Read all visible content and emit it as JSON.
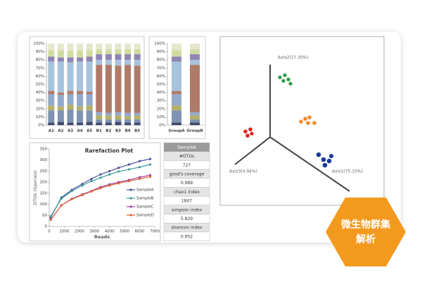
{
  "chart_data": [
    {
      "type": "stacked-bar",
      "categories": [
        "A1",
        "A2",
        "A3",
        "A4",
        "A5",
        "B1",
        "B2",
        "B3",
        "B4",
        "B5"
      ],
      "ylim": [
        0,
        100
      ],
      "yticks": [
        {
          "value": 0,
          "label": "0%"
        },
        {
          "value": 10,
          "label": "10%"
        },
        {
          "value": 20,
          "label": "20%"
        },
        {
          "value": 30,
          "label": "30%"
        },
        {
          "value": 40,
          "label": "40%"
        },
        {
          "value": 50,
          "label": "50%"
        },
        {
          "value": 60,
          "label": "60%"
        },
        {
          "value": 70,
          "label": "70%"
        },
        {
          "value": 80,
          "label": "80%"
        },
        {
          "value": 90,
          "label": "90%"
        },
        {
          "value": 100,
          "label": "100%"
        }
      ],
      "series": [
        {
          "color": "#3f4a6b",
          "values": [
            3,
            4,
            3,
            3,
            4,
            3,
            3,
            4,
            3,
            3
          ]
        },
        {
          "color": "#7f93b3",
          "values": [
            15,
            14,
            16,
            15,
            14,
            4,
            4,
            3,
            4,
            4
          ]
        },
        {
          "color": "#b5b06a",
          "values": [
            6,
            5,
            6,
            5,
            6,
            5,
            5,
            5,
            4,
            5
          ]
        },
        {
          "color": "#93aacb",
          "values": [
            14,
            14,
            13,
            15,
            14,
            4,
            3,
            4,
            4,
            3
          ]
        },
        {
          "color": "#b07a68",
          "values": [
            4,
            3,
            4,
            4,
            3,
            58,
            59,
            57,
            59,
            58
          ]
        },
        {
          "color": "#a8c3dd",
          "values": [
            36,
            38,
            35,
            36,
            37,
            6,
            6,
            7,
            6,
            7
          ]
        },
        {
          "color": "#8f86b4",
          "values": [
            6,
            5,
            6,
            5,
            6,
            7,
            7,
            7,
            7,
            7
          ]
        },
        {
          "color": "#cfdca0",
          "values": [
            8,
            9,
            8,
            9,
            8,
            6,
            6,
            6,
            6,
            6
          ]
        },
        {
          "color": "#e6e6cc",
          "values": [
            8,
            8,
            9,
            8,
            8,
            7,
            7,
            7,
            7,
            7
          ]
        }
      ]
    },
    {
      "type": "stacked-bar",
      "categories": [
        "GroupA",
        "GroupB"
      ],
      "ylim": [
        0,
        100
      ],
      "yticks": [
        {
          "value": 0,
          "label": "0%"
        },
        {
          "value": 10,
          "label": "10%"
        },
        {
          "value": 20,
          "label": "20%"
        },
        {
          "value": 30,
          "label": "30%"
        },
        {
          "value": 40,
          "label": "40%"
        },
        {
          "value": 50,
          "label": "50%"
        },
        {
          "value": 60,
          "label": "60%"
        },
        {
          "value": 70,
          "label": "70%"
        },
        {
          "value": 80,
          "label": "80%"
        },
        {
          "value": 90,
          "label": "90%"
        },
        {
          "value": 100,
          "label": "100%"
        }
      ],
      "series": [
        {
          "color": "#3f4a6b",
          "values": [
            3,
            3
          ]
        },
        {
          "color": "#7f93b3",
          "values": [
            15,
            4
          ]
        },
        {
          "color": "#b5b06a",
          "values": [
            6,
            5
          ]
        },
        {
          "color": "#93aacb",
          "values": [
            14,
            4
          ]
        },
        {
          "color": "#b07a68",
          "values": [
            4,
            58
          ]
        },
        {
          "color": "#a8c3dd",
          "values": [
            36,
            6
          ]
        },
        {
          "color": "#8f86b4",
          "values": [
            6,
            7
          ]
        },
        {
          "color": "#cfdca0",
          "values": [
            8,
            6
          ]
        },
        {
          "color": "#e6e6cc",
          "values": [
            8,
            7
          ]
        }
      ]
    },
    {
      "type": "line",
      "title": "Rarefaction Plot",
      "x_label": "Reads",
      "y_label": "OTUs (Species)",
      "x": [
        100,
        800,
        1500,
        2200,
        2800,
        3400,
        4000,
        4600,
        5300,
        6000,
        6700
      ],
      "xlim": [
        0,
        7000
      ],
      "xticks": [
        0,
        1000,
        2000,
        3000,
        4000,
        5000,
        6000,
        7000
      ],
      "ylim": [
        0,
        350
      ],
      "yticks": [
        0,
        50,
        100,
        150,
        200,
        250,
        300,
        350
      ],
      "series": [
        {
          "name": "SampleA",
          "color": "#4a4f9a",
          "values": [
            40,
            130,
            165,
            192,
            215,
            235,
            250,
            265,
            280,
            295,
            305
          ]
        },
        {
          "name": "SampleB",
          "color": "#3b9a9a",
          "values": [
            45,
            125,
            160,
            185,
            205,
            220,
            235,
            248,
            258,
            268,
            280
          ]
        },
        {
          "name": "SampleC",
          "color": "#a040a0",
          "values": [
            30,
            95,
            125,
            145,
            160,
            178,
            190,
            200,
            210,
            222,
            232
          ]
        },
        {
          "name": "SampleD",
          "color": "#e06030",
          "values": [
            30,
            95,
            123,
            142,
            158,
            173,
            185,
            195,
            205,
            215,
            225
          ]
        }
      ]
    }
  ],
  "pcoa": {
    "axis2": "Axis2(17.30%)",
    "axis3": "Axis3(4.94%)",
    "axis1": "Axis1(75.10%)"
  },
  "table": {
    "header": "SampleA",
    "rows": [
      [
        "#OTUs",
        "727"
      ],
      [
        "good's coverage",
        "0.989"
      ],
      [
        "chao1 index",
        "1847"
      ],
      [
        "simpson index",
        "5.829"
      ],
      [
        "shannon index",
        "0.952"
      ]
    ]
  },
  "badge": {
    "line1": "微生物群集",
    "line2": "解析"
  }
}
